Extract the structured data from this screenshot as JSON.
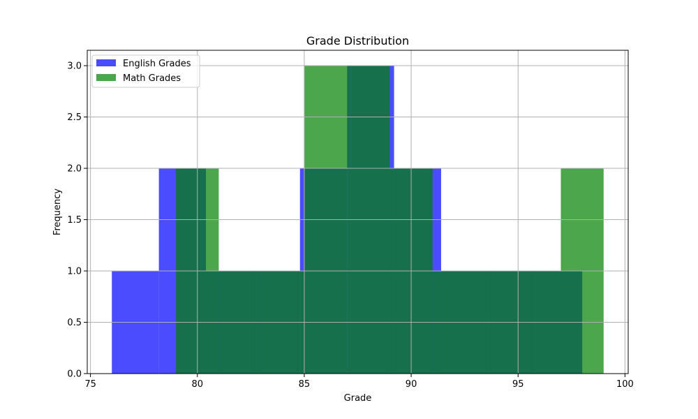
{
  "chart_data": {
    "type": "bar",
    "title": "Grade Distribution",
    "xlabel": "Grade",
    "ylabel": "Frequency",
    "xlim": [
      74.85,
      100.15
    ],
    "ylim": [
      0,
      3.15
    ],
    "x_ticks": [
      75,
      80,
      85,
      90,
      95,
      100
    ],
    "x_tick_labels": [
      "75",
      "80",
      "85",
      "90",
      "95",
      "100"
    ],
    "y_ticks": [
      0,
      0.5,
      1,
      1.5,
      2,
      2.5,
      3
    ],
    "y_tick_labels": [
      "0.0",
      "0.5",
      "1.0",
      "1.5",
      "2.0",
      "2.5",
      "3.0"
    ],
    "grid": true,
    "legend_position": "upper-left",
    "histogram": true,
    "series": [
      {
        "name": "English Grades",
        "color": "#0000ff",
        "alpha": 0.7,
        "bin_edges": [
          76.0,
          78.2,
          80.4,
          82.6,
          84.8,
          87.0,
          89.2,
          91.4,
          93.6,
          95.8,
          98.0
        ],
        "counts": [
          1,
          2,
          1,
          1,
          2,
          3,
          2,
          1,
          1,
          1
        ]
      },
      {
        "name": "Math Grades",
        "color": "#008000",
        "alpha": 0.7,
        "bin_edges": [
          79.0,
          81.0,
          83.0,
          85.0,
          87.0,
          89.0,
          91.0,
          93.0,
          95.0,
          97.0,
          99.0
        ],
        "counts": [
          2,
          1,
          1,
          3,
          3,
          2,
          1,
          1,
          1,
          2
        ]
      }
    ]
  }
}
